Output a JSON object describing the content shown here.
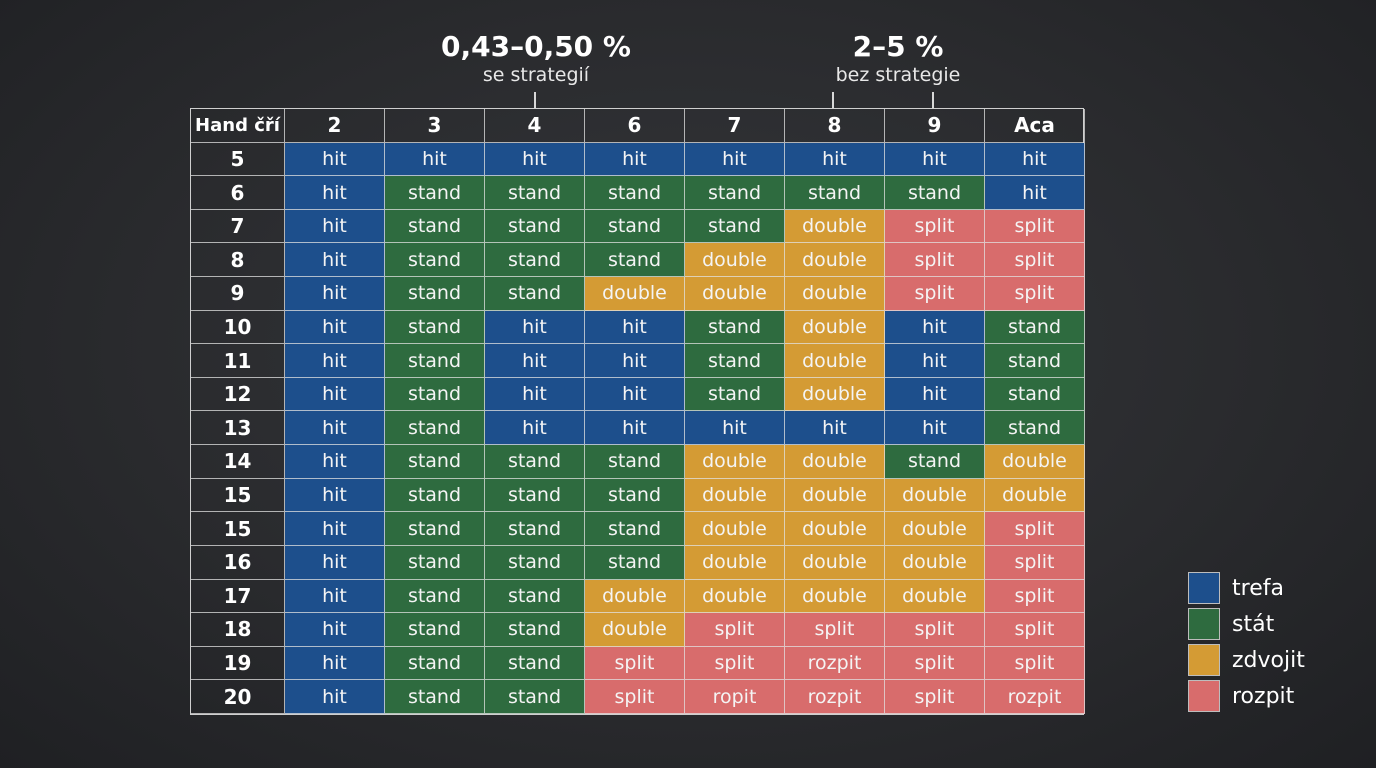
{
  "annotations": {
    "left": {
      "value": "0,43–0,50 %",
      "caption": "se strategií"
    },
    "right": {
      "value": "2–5 %",
      "caption": "bez strategie"
    }
  },
  "chart_data": {
    "type": "table",
    "corner_label": "Hand čří",
    "columns": [
      "2",
      "3",
      "4",
      "6",
      "7",
      "8",
      "9",
      "Aca"
    ],
    "rows": [
      {
        "label": "5",
        "cells": [
          "hit",
          "hit",
          "hit",
          "hit",
          "hit",
          "hit",
          "hit",
          "hit"
        ],
        "actions": [
          "hit",
          "hit",
          "hit",
          "hit",
          "hit",
          "hit",
          "hit",
          "hit"
        ]
      },
      {
        "label": "6",
        "cells": [
          "hit",
          "stand",
          "stand",
          "stand",
          "stand",
          "stand",
          "stand",
          "hit"
        ],
        "actions": [
          "hit",
          "stand",
          "stand",
          "stand",
          "stand",
          "stand",
          "stand",
          "hit"
        ]
      },
      {
        "label": "7",
        "cells": [
          "hit",
          "stand",
          "stand",
          "stand",
          "stand",
          "double",
          "split",
          "split"
        ],
        "actions": [
          "hit",
          "stand",
          "stand",
          "stand",
          "stand",
          "double",
          "split",
          "split"
        ]
      },
      {
        "label": "8",
        "cells": [
          "hit",
          "stand",
          "stand",
          "stand",
          "double",
          "double",
          "split",
          "split"
        ],
        "actions": [
          "hit",
          "stand",
          "stand",
          "stand",
          "double",
          "double",
          "split",
          "split"
        ]
      },
      {
        "label": "9",
        "cells": [
          "hit",
          "stand",
          "stand",
          "double",
          "double",
          "double",
          "split",
          "split"
        ],
        "actions": [
          "hit",
          "stand",
          "stand",
          "double",
          "double",
          "double",
          "split",
          "split"
        ]
      },
      {
        "label": "10",
        "cells": [
          "hit",
          "stand",
          "hit",
          "hit",
          "stand",
          "double",
          "hit",
          "stand"
        ],
        "actions": [
          "hit",
          "stand",
          "hit",
          "hit",
          "stand",
          "double",
          "hit",
          "stand"
        ]
      },
      {
        "label": "11",
        "cells": [
          "hit",
          "stand",
          "hit",
          "hit",
          "stand",
          "double",
          "hit",
          "stand"
        ],
        "actions": [
          "hit",
          "stand",
          "hit",
          "hit",
          "stand",
          "double",
          "hit",
          "stand"
        ]
      },
      {
        "label": "12",
        "cells": [
          "hit",
          "stand",
          "hit",
          "hit",
          "stand",
          "double",
          "hit",
          "stand"
        ],
        "actions": [
          "hit",
          "stand",
          "hit",
          "hit",
          "stand",
          "double",
          "hit",
          "stand"
        ]
      },
      {
        "label": "13",
        "cells": [
          "hit",
          "stand",
          "hit",
          "hit",
          "hit",
          "hit",
          "hit",
          "stand"
        ],
        "actions": [
          "hit",
          "stand",
          "hit",
          "hit",
          "hit",
          "hit",
          "hit",
          "stand"
        ]
      },
      {
        "label": "14",
        "cells": [
          "hit",
          "stand",
          "stand",
          "stand",
          "double",
          "double",
          "stand",
          "double"
        ],
        "actions": [
          "hit",
          "stand",
          "stand",
          "stand",
          "double",
          "double",
          "stand",
          "double"
        ]
      },
      {
        "label": "15",
        "cells": [
          "hit",
          "stand",
          "stand",
          "stand",
          "double",
          "double",
          "double",
          "double"
        ],
        "actions": [
          "hit",
          "stand",
          "stand",
          "stand",
          "double",
          "double",
          "double",
          "double"
        ]
      },
      {
        "label": "15",
        "cells": [
          "hit",
          "stand",
          "stand",
          "stand",
          "double",
          "double",
          "double",
          "split"
        ],
        "actions": [
          "hit",
          "stand",
          "stand",
          "stand",
          "double",
          "double",
          "double",
          "split"
        ]
      },
      {
        "label": "16",
        "cells": [
          "hit",
          "stand",
          "stand",
          "stand",
          "double",
          "double",
          "double",
          "split"
        ],
        "actions": [
          "hit",
          "stand",
          "stand",
          "stand",
          "double",
          "double",
          "double",
          "split"
        ]
      },
      {
        "label": "17",
        "cells": [
          "hit",
          "stand",
          "stand",
          "double",
          "double",
          "double",
          "double",
          "split"
        ],
        "actions": [
          "hit",
          "stand",
          "stand",
          "double",
          "double",
          "double",
          "double",
          "split"
        ]
      },
      {
        "label": "18",
        "cells": [
          "hit",
          "stand",
          "stand",
          "double",
          "split",
          "split",
          "split",
          "split"
        ],
        "actions": [
          "hit",
          "stand",
          "stand",
          "double",
          "split",
          "split",
          "split",
          "split"
        ]
      },
      {
        "label": "19",
        "cells": [
          "hit",
          "stand",
          "stand",
          "split",
          "split",
          "rozpit",
          "split",
          "split"
        ],
        "actions": [
          "hit",
          "stand",
          "stand",
          "split",
          "split",
          "split",
          "split",
          "split"
        ]
      },
      {
        "label": "20",
        "cells": [
          "hit",
          "stand",
          "stand",
          "split",
          "ropit",
          "rozpit",
          "split",
          "rozpit"
        ],
        "actions": [
          "hit",
          "stand",
          "stand",
          "split",
          "split",
          "split",
          "split",
          "split"
        ]
      }
    ],
    "legend": [
      {
        "label": "trefa",
        "action": "hit",
        "color": "#1d4f8c"
      },
      {
        "label": "stát",
        "action": "stand",
        "color": "#2e6b3f"
      },
      {
        "label": "zdvojit",
        "action": "double",
        "color": "#d49b34"
      },
      {
        "label": "rozpit",
        "action": "split",
        "color": "#d86c6c"
      }
    ],
    "legend_position": "bottom-right"
  }
}
